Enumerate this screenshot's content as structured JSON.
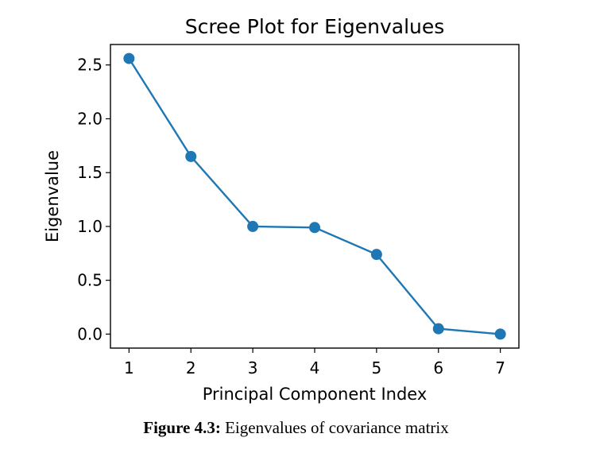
{
  "chart_data": {
    "type": "line",
    "title": "Scree Plot for Eigenvalues",
    "xlabel": "Principal Component Index",
    "ylabel": "Eigenvalue",
    "x": [
      1,
      2,
      3,
      4,
      5,
      6,
      7
    ],
    "series": [
      {
        "values": [
          2.56,
          1.65,
          1.0,
          0.99,
          0.74,
          0.05,
          0.0
        ]
      }
    ],
    "xticks": [
      "1",
      "2",
      "3",
      "4",
      "5",
      "6",
      "7"
    ],
    "yticks": [
      "0.0",
      "0.5",
      "1.0",
      "1.5",
      "2.0",
      "2.5"
    ],
    "xlim": [
      0.7,
      7.3
    ],
    "ylim": [
      -0.13,
      2.69
    ],
    "grid": false,
    "markers": true,
    "line_color": "#1f77b4"
  },
  "caption": {
    "label": "Figure 4.3:",
    "text": " Eigenvalues of covariance matrix"
  }
}
